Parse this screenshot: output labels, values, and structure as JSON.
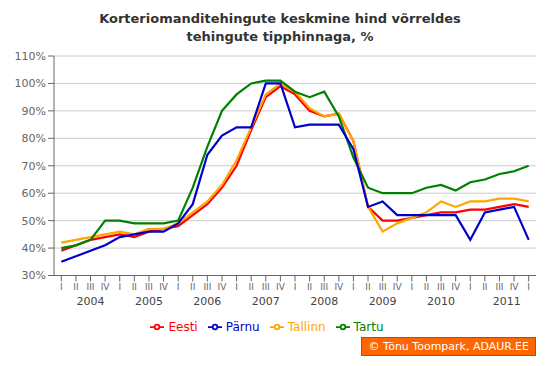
{
  "chart_data": {
    "type": "line",
    "title": "Korteriomanditehingute keskmine hind võrreldes\ntehingute tipphinnaga, %",
    "categories": [
      "I",
      "II",
      "III",
      "IV",
      "I",
      "II",
      "III",
      "IV",
      "I",
      "II",
      "III",
      "IV",
      "I",
      "II",
      "III",
      "IV",
      "I",
      "II",
      "III",
      "IV",
      "I",
      "II",
      "III",
      "IV",
      "I",
      "II",
      "III",
      "IV",
      "I",
      "II",
      "III",
      "IV",
      "I"
    ],
    "series": [
      {
        "name": "Eesti",
        "color": "#ff0000",
        "values": [
          39,
          41,
          43,
          44,
          45,
          44,
          46,
          47,
          48,
          52,
          56,
          62,
          70,
          83,
          95,
          99,
          96,
          90,
          88,
          89,
          79,
          55,
          50,
          50,
          51,
          52,
          53,
          53,
          54,
          54,
          55,
          56,
          55
        ]
      },
      {
        "name": "Tallinn",
        "color": "#ffa500",
        "values": [
          42,
          43,
          44,
          45,
          46,
          45,
          47,
          47,
          49,
          53,
          57,
          63,
          72,
          84,
          96,
          100,
          97,
          91,
          88,
          89,
          79,
          55,
          46,
          49,
          51,
          53,
          57,
          55,
          57,
          57,
          58,
          58,
          57
        ]
      },
      {
        "name": "Tartu",
        "color": "#008000",
        "values": [
          40,
          41,
          43,
          50,
          50,
          49,
          49,
          49,
          50,
          62,
          77,
          90,
          96,
          100,
          101,
          101,
          97,
          95,
          97,
          88,
          73,
          62,
          60,
          60,
          60,
          62,
          63,
          61,
          64,
          65,
          67,
          68,
          70
        ]
      },
      {
        "name": "Pärnu",
        "color": "#0000cd",
        "values": [
          35,
          37,
          39,
          41,
          44,
          45,
          46,
          46,
          49,
          56,
          74,
          81,
          84,
          84,
          100,
          100,
          84,
          85,
          85,
          85,
          76,
          55,
          57,
          52,
          52,
          52,
          52,
          52,
          43,
          53,
          54,
          55,
          43
        ]
      }
    ],
    "ylim": [
      30,
      110
    ],
    "yticks": [
      {
        "value": 30,
        "label": "30%"
      },
      {
        "value": 40,
        "label": "40%"
      },
      {
        "value": 50,
        "label": "50%"
      },
      {
        "value": 60,
        "label": "60%"
      },
      {
        "value": 70,
        "label": "70%"
      },
      {
        "value": 80,
        "label": "80%"
      },
      {
        "value": 90,
        "label": "90%"
      },
      {
        "value": 100,
        "label": "100%"
      },
      {
        "value": 110,
        "label": "110%"
      }
    ],
    "grid": true,
    "legend": "bottom",
    "annotations": [
      {
        "text": "2004",
        "x": 2
      },
      {
        "text": "2005",
        "x": 6
      },
      {
        "text": "2006",
        "x": 10
      },
      {
        "text": "2007",
        "x": 14
      },
      {
        "text": "2008",
        "x": 18
      },
      {
        "text": "2009",
        "x": 22
      },
      {
        "text": "2010",
        "x": 26
      },
      {
        "text": "2011",
        "x": 30.5
      },
      {
        "text": "© Tõnu Toompark, ADAUR.EE",
        "color": "#ff6600"
      }
    ]
  }
}
